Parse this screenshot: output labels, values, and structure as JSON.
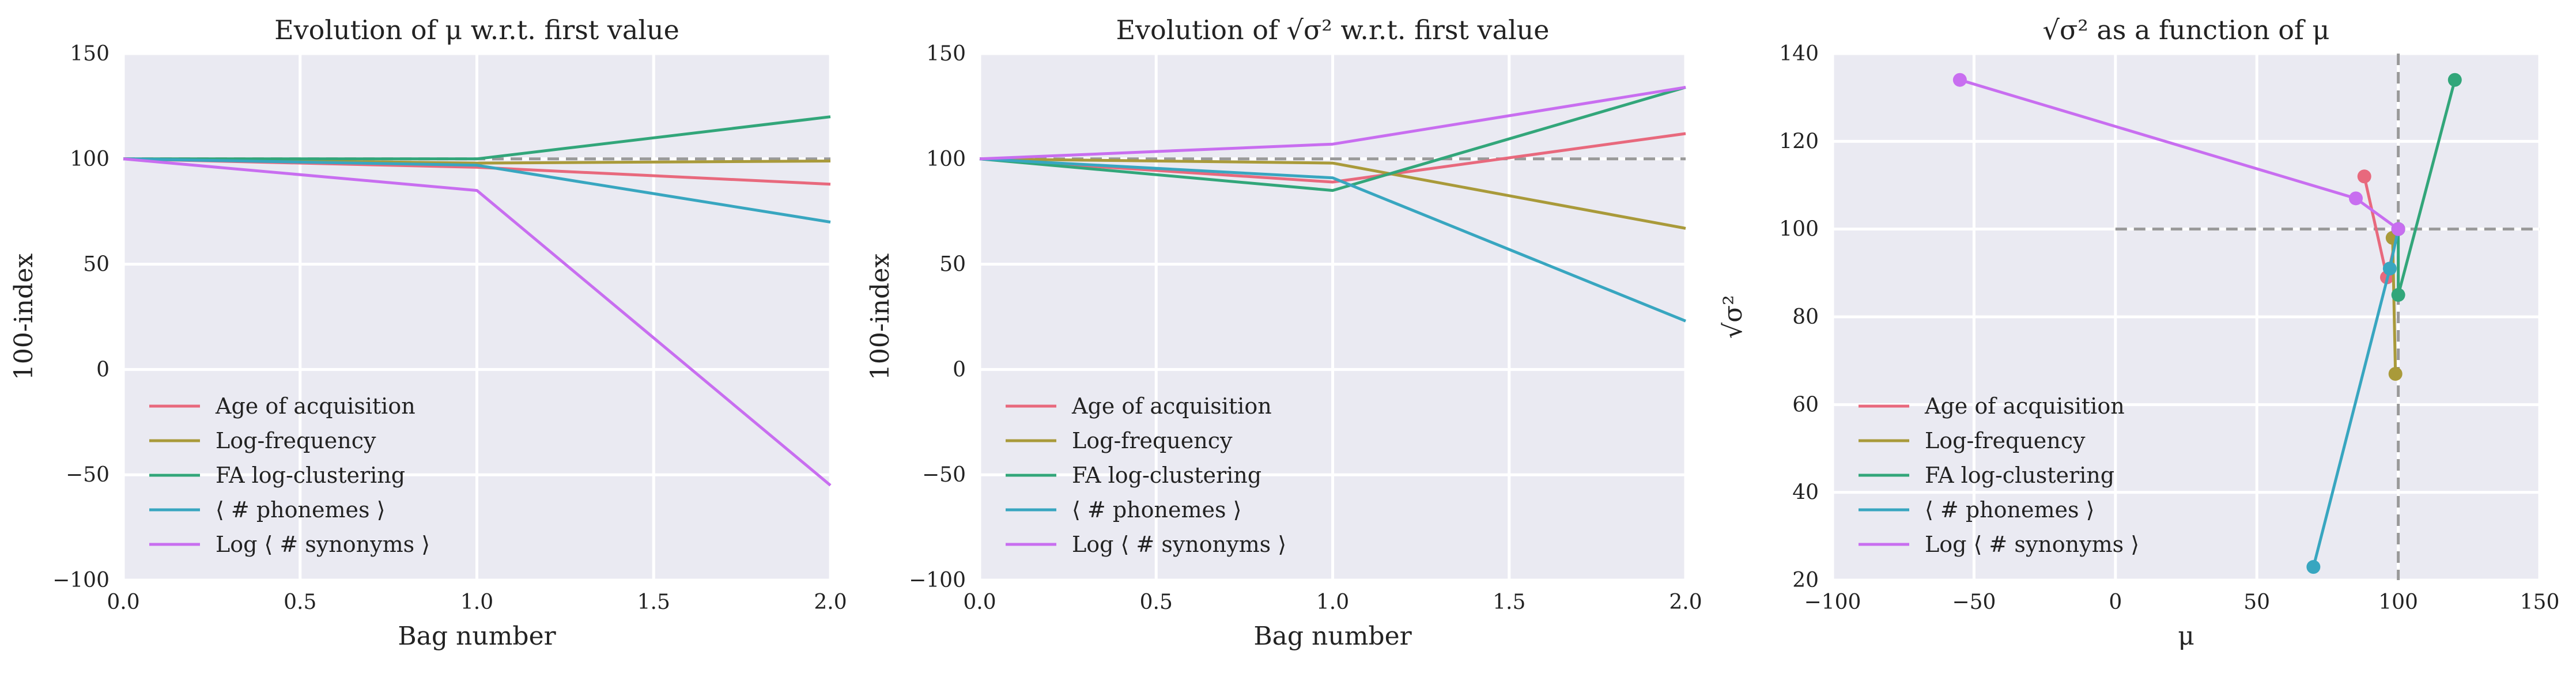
{
  "chart_data": [
    {
      "type": "line",
      "title": "Evolution of μ w.r.t. first value",
      "xlabel": "Bag number",
      "ylabel": "100-index",
      "xlim": [
        0,
        2
      ],
      "ylim": [
        -100,
        150
      ],
      "xticks": [
        "0.0",
        "0.5",
        "1.0",
        "1.5",
        "2.0"
      ],
      "xtick_values": [
        0,
        0.5,
        1,
        1.5,
        2
      ],
      "yticks": [
        "−100",
        "−50",
        "0",
        "50",
        "100",
        "150"
      ],
      "ytick_values": [
        -100,
        -50,
        0,
        50,
        100,
        150
      ],
      "grid": true,
      "legend_position": "lower-left",
      "reference_lines": [
        {
          "orientation": "horizontal",
          "value": 100
        }
      ],
      "x": [
        0,
        1,
        2
      ],
      "series": [
        {
          "name": "Age of acquisition",
          "values": [
            100,
            96,
            88
          ],
          "color": "#e8697d"
        },
        {
          "name": "Log-frequency",
          "values": [
            100,
            98,
            99
          ],
          "color": "#a99a3a"
        },
        {
          "name": "FA log-clustering",
          "values": [
            100,
            100,
            120
          ],
          "color": "#32a67a"
        },
        {
          "name": "⟨ # phonemes ⟩",
          "values": [
            100,
            97,
            70
          ],
          "color": "#38a6c0"
        },
        {
          "name": "Log ⟨ # synonyms ⟩",
          "values": [
            100,
            85,
            -55
          ],
          "color": "#c86ef0"
        }
      ]
    },
    {
      "type": "line",
      "title": "Evolution of √σ² w.r.t. first value",
      "xlabel": "Bag number",
      "ylabel": "100-index",
      "xlim": [
        0,
        2
      ],
      "ylim": [
        -100,
        150
      ],
      "xticks": [
        "0.0",
        "0.5",
        "1.0",
        "1.5",
        "2.0"
      ],
      "xtick_values": [
        0,
        0.5,
        1,
        1.5,
        2
      ],
      "yticks": [
        "−100",
        "−50",
        "0",
        "50",
        "100",
        "150"
      ],
      "ytick_values": [
        -100,
        -50,
        0,
        50,
        100,
        150
      ],
      "grid": true,
      "legend_position": "lower-left",
      "reference_lines": [
        {
          "orientation": "horizontal",
          "value": 100
        }
      ],
      "x": [
        0,
        1,
        2
      ],
      "series": [
        {
          "name": "Age of acquisition",
          "values": [
            100,
            89,
            112
          ],
          "color": "#e8697d"
        },
        {
          "name": "Log-frequency",
          "values": [
            100,
            98,
            67
          ],
          "color": "#a99a3a"
        },
        {
          "name": "FA log-clustering",
          "values": [
            100,
            85,
            134
          ],
          "color": "#32a67a"
        },
        {
          "name": "⟨ # phonemes ⟩",
          "values": [
            100,
            91,
            23
          ],
          "color": "#38a6c0"
        },
        {
          "name": "Log ⟨ # synonyms ⟩",
          "values": [
            100,
            107,
            134
          ],
          "color": "#c86ef0"
        }
      ]
    },
    {
      "type": "scatter",
      "title": "√σ² as a function of μ",
      "xlabel": "μ",
      "ylabel": "√σ²",
      "xlim": [
        -100,
        150
      ],
      "ylim": [
        20,
        140
      ],
      "xticks": [
        "−100",
        "−50",
        "0",
        "50",
        "100",
        "150"
      ],
      "xtick_values": [
        -100,
        -50,
        0,
        50,
        100,
        150
      ],
      "yticks": [
        "20",
        "40",
        "60",
        "80",
        "100",
        "120",
        "140"
      ],
      "ytick_values": [
        20,
        40,
        60,
        80,
        100,
        120,
        140
      ],
      "grid": true,
      "legend_position": "lower-left",
      "reference_lines": [
        {
          "orientation": "vertical",
          "value": 100
        },
        {
          "orientation": "horizontal",
          "value": 100,
          "from": 0
        }
      ],
      "series": [
        {
          "name": "Age of acquisition",
          "x": [
            100,
            96,
            88
          ],
          "y": [
            100,
            89,
            112
          ],
          "color": "#e8697d"
        },
        {
          "name": "Log-frequency",
          "x": [
            100,
            98,
            99
          ],
          "y": [
            100,
            98,
            67
          ],
          "color": "#a99a3a"
        },
        {
          "name": "FA log-clustering",
          "x": [
            100,
            100,
            120
          ],
          "y": [
            100,
            85,
            134
          ],
          "color": "#32a67a"
        },
        {
          "name": "⟨ # phonemes ⟩",
          "x": [
            100,
            97,
            70
          ],
          "y": [
            100,
            91,
            23
          ],
          "color": "#38a6c0"
        },
        {
          "name": "Log ⟨ # synonyms ⟩",
          "x": [
            100,
            85,
            -55
          ],
          "y": [
            100,
            107,
            134
          ],
          "color": "#c86ef0"
        }
      ]
    }
  ]
}
